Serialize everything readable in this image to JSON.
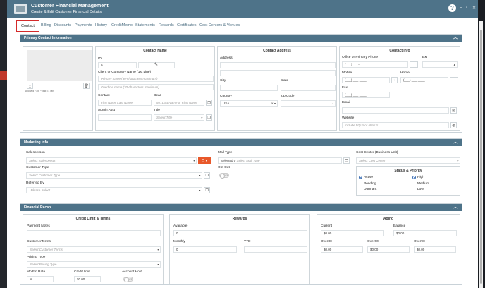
{
  "window": {
    "title": "Customer Financial Management",
    "subtitle": "Create & Edit Customer Financial Details",
    "help": "?",
    "minimize": "–",
    "restore": "▫",
    "close": "✕"
  },
  "tabs": [
    "Contact",
    "Billing",
    "Discounts",
    "Payments",
    "History",
    "CreditMemo",
    "Statements",
    "Rewards",
    "Certificates",
    "Cost Centers & Venues"
  ],
  "primary": {
    "header": "Primary Contact Information",
    "photo_hint": "Allowed *.jpg *.png <1 MB",
    "contact_name": {
      "title": "Contact Name",
      "id_label": "ID",
      "id_value": "0",
      "client_label": "Client or Company Name (1st Line)",
      "primary_placeholder": "Primary name (30-characters maximum)",
      "overflow_placeholder": "Overflow name (30-characters maximum)",
      "contact_label": "Contact",
      "contact_placeholder": "First Name Last Name",
      "dear_label": "Dear",
      "dear_placeholder": "Mr. Last Name or First Name",
      "admin_label": "Admin Asst",
      "title_label": "Title",
      "title_placeholder": "Select Title"
    },
    "address": {
      "title": "Contact Address",
      "address_label": "Address",
      "city_label": "City",
      "state_label": "State",
      "country_label": "Country",
      "country_value": "USA",
      "zip_label": "Zip Code"
    },
    "info": {
      "title": "Contact Info",
      "office_label": "Office or Primary Phone",
      "ext_label": "Ext",
      "phone_mask": "(___) ___-____",
      "mobile_label": "Mobile",
      "home_label": "Home",
      "fax_label": "Fax",
      "email_label": "Email",
      "website_label": "Website",
      "website_placeholder": "Include http:// or https://"
    }
  },
  "marketing": {
    "header": "Marketing Info",
    "salesperson_label": "Salesperson",
    "salesperson_placeholder": "Select Salesperson",
    "customer_type_label": "Customer Type",
    "customer_type_placeholder": "Select Customer Type",
    "referred_label": "Referred By",
    "referred_placeholder": "..Please Select",
    "mail_type_label": "Mail Type",
    "mail_selected": "Selected",
    "mail_count": "0",
    "mail_placeholder": "Select Mail Type",
    "opt_out_label": "Opt Out",
    "toggle_off": "OFF",
    "cost_center_label": "Cost Center (Business Unit)",
    "cost_center_placeholder": "Select Cost Center",
    "status_title": "Status & Priority",
    "status_active": "Active",
    "status_pending": "Pending",
    "status_dormant": "Dormant",
    "priority_high": "High",
    "priority_medium": "Medium",
    "priority_low": "Low"
  },
  "financial": {
    "header": "Financial Recap",
    "credit": {
      "title": "Credit Limit & Terms",
      "payment_notes_label": "Payment Notes",
      "terms_label": "CustomerTerms",
      "terms_placeholder": "Select Customer Terms",
      "pricing_label": "Pricing Type",
      "pricing_placeholder": "Select Pricing Type",
      "fin_rate_label": "Mo Fin Rate",
      "fin_rate_value": "%",
      "credit_limit_label": "Credit limit",
      "credit_limit_value": "$0.00",
      "account_hold_label": "Account Hold"
    },
    "rewards": {
      "title": "Rewards",
      "available_label": "Available",
      "available_value": "0",
      "monthly_label": "Monthly",
      "monthly_value": "0",
      "ytd_label": "YTD"
    },
    "aging": {
      "title": "Aging",
      "current_label": "Current",
      "current_value": "$0.00",
      "balance_label": "Balance",
      "balance_value": "$0.00",
      "over30_label": "Over30",
      "over30_value": "$0.00",
      "over60_label": "Over60",
      "over60_value": "$0.00",
      "over90_label": "Over90",
      "over90_value": "$0.00"
    }
  }
}
